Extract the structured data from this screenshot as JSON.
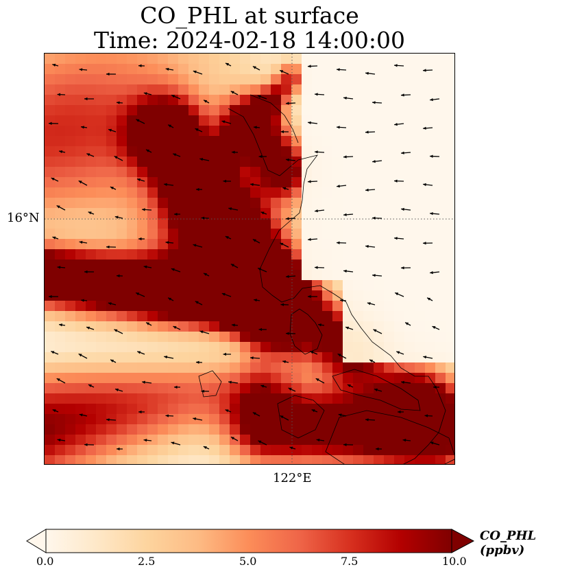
{
  "title": {
    "line1": "CO_PHL at surface",
    "line2": "Time: 2024-02-18 14:00:00"
  },
  "axes": {
    "lat_tick": "16°N",
    "lon_tick": "122°E"
  },
  "colorbar": {
    "label": "CO_PHL (ppbv)",
    "ticks": [
      "0.0",
      "2.5",
      "5.0",
      "7.5",
      "10.0"
    ],
    "range": [
      0,
      10
    ],
    "colormap": "OrRd",
    "colors": [
      "#fff7ec",
      "#fee8c8",
      "#fdd49e",
      "#fdbb84",
      "#fc8d59",
      "#ef6548",
      "#d7301f",
      "#b30000",
      "#7f0000"
    ],
    "extend": "both"
  },
  "map": {
    "variable": "CO_PHL",
    "units": "ppbv",
    "gridlines": "dotted",
    "coastlines": true,
    "wind_vectors": true
  }
}
